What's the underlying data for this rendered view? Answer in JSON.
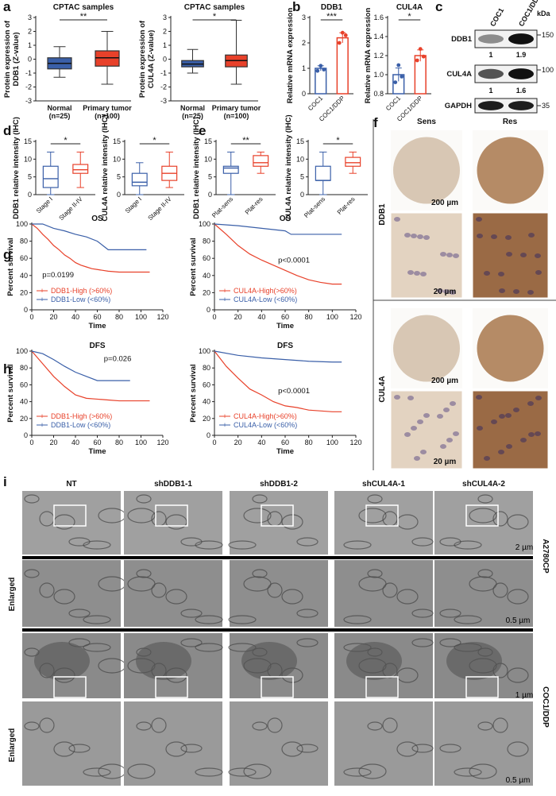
{
  "panel_labels": [
    "a",
    "b",
    "c",
    "d",
    "e",
    "f",
    "g",
    "h",
    "i"
  ],
  "chart_data": [
    {
      "type": "box",
      "title": "CPTAC samples",
      "ylabel": [
        "Protein expression of",
        "DDB1 (Z-value)"
      ],
      "categories": [
        "Normal",
        "Primary tumor"
      ],
      "category_notes": [
        "(n=25)",
        "(n=100)"
      ],
      "values": [
        [
          -1.3,
          -0.7,
          -0.3,
          0.1,
          0.9
        ],
        [
          -1.8,
          -0.5,
          0.1,
          0.6,
          2.0
        ]
      ],
      "colors": [
        "#3a5fa8",
        "#e8412a"
      ],
      "filled": true,
      "annotation": "**",
      "ylim": [
        -3,
        3
      ],
      "yticks": [
        3,
        2,
        1,
        0,
        -1,
        -2,
        -3
      ]
    },
    {
      "type": "box",
      "title": "CPTAC samples",
      "ylabel": [
        "Protein expression of",
        "CUL4A (Z-value)"
      ],
      "categories": [
        "Normal",
        "Primary tumor"
      ],
      "category_notes": [
        "(n=25)",
        "(n=100)"
      ],
      "values": [
        [
          -1.0,
          -0.55,
          -0.35,
          -0.1,
          0.7
        ],
        [
          -1.8,
          -0.55,
          -0.1,
          0.3,
          2.8
        ]
      ],
      "colors": [
        "#3a5fa8",
        "#e8412a"
      ],
      "filled": true,
      "annotation": "*",
      "ylim": [
        -3,
        3
      ],
      "yticks": [
        3,
        2,
        1,
        0,
        -1,
        -2,
        -3
      ]
    },
    {
      "type": "bar",
      "title": "DDB1",
      "ylabel": [
        "Relative mRNA expression"
      ],
      "categories": [
        "COC1",
        "COC1/DDP"
      ],
      "values": [
        1.0,
        2.2
      ],
      "errors": [
        0.1,
        0.2
      ],
      "points": [
        [
          0.9,
          1.1,
          0.95
        ],
        [
          2.0,
          2.4,
          2.3
        ]
      ],
      "colors": [
        "#3a5fa8",
        "#e8412a"
      ],
      "annotation": "***",
      "ylim": [
        0,
        3
      ],
      "yticks": [
        0,
        1,
        2,
        3
      ]
    },
    {
      "type": "bar",
      "title": "CUL4A",
      "ylabel": [
        "Relative mRNA expression"
      ],
      "categories": [
        "COC1",
        "COC1/DDP"
      ],
      "values": [
        1.0,
        1.2
      ],
      "errors": [
        0.07,
        0.06
      ],
      "points": [
        [
          0.92,
          1.1,
          0.98
        ],
        [
          1.15,
          1.27,
          1.19
        ]
      ],
      "colors": [
        "#3a5fa8",
        "#e8412a"
      ],
      "annotation": "*",
      "ylim": [
        0.8,
        1.6
      ],
      "yticks": [
        {
          "value": 0.8,
          "label": "0.8"
        },
        {
          "value": 1,
          "label": "1.0"
        },
        {
          "value": 1.2,
          "label": "1.2"
        },
        {
          "value": 1.4,
          "label": "1.4"
        },
        {
          "value": 1.6,
          "label": "1.6"
        }
      ]
    },
    {
      "type": "box",
      "ylabel": [
        "DDB1 relative intensity (IHC)"
      ],
      "categories": [
        "Stage I",
        "Stage II-IV"
      ],
      "values": [
        [
          0,
          2,
          4.5,
          8,
          12
        ],
        [
          2,
          6,
          7,
          8.5,
          12
        ]
      ],
      "colors": [
        "#3a5fa8",
        "#e8412a"
      ],
      "filled": false,
      "annotation": "*",
      "ylim": [
        0,
        15
      ],
      "yticks": [
        0,
        5,
        10,
        15
      ]
    },
    {
      "type": "box",
      "ylabel": [
        "CUL4A relative intensity (IHC)"
      ],
      "categories": [
        "Stage I",
        "Stage II-IV"
      ],
      "values": [
        [
          0,
          2.5,
          3.5,
          6,
          9
        ],
        [
          2,
          4,
          6,
          8,
          12
        ]
      ],
      "colors": [
        "#3a5fa8",
        "#e8412a"
      ],
      "filled": false,
      "annotation": "*",
      "ylim": [
        0,
        15
      ],
      "yticks": [
        0,
        5,
        10,
        15
      ]
    },
    {
      "type": "box",
      "ylabel": [
        "DDB1 relative intensity (IHC)"
      ],
      "categories": [
        "Plat-sens",
        "Plat-res"
      ],
      "values": [
        [
          0,
          6,
          7.5,
          8,
          12
        ],
        [
          6,
          8,
          9,
          11,
          12
        ]
      ],
      "colors": [
        "#3a5fa8",
        "#e8412a"
      ],
      "filled": false,
      "annotation": "**",
      "ylim": [
        0,
        15
      ],
      "yticks": [
        0,
        5,
        10,
        15
      ]
    },
    {
      "type": "box",
      "ylabel": [
        "CUL4A relative intensity (IHC)"
      ],
      "categories": [
        "Plat-sens",
        "Plat-res"
      ],
      "values": [
        [
          0,
          4,
          4,
          8,
          12
        ],
        [
          6,
          8,
          9,
          10.5,
          12
        ]
      ],
      "colors": [
        "#3a5fa8",
        "#e8412a"
      ],
      "filled": false,
      "annotation": "*",
      "ylim": [
        0,
        15
      ],
      "yticks": [
        0,
        5,
        10,
        15
      ]
    },
    {
      "type": "line",
      "title": "OS",
      "xlabel": "Time",
      "ylabel": [
        "Percent survival"
      ],
      "annotation": "p=0.0199",
      "series": [
        {
          "name": "DDB1-High (>60%)",
          "color": "#e8412a",
          "x": [
            0,
            5,
            10,
            15,
            20,
            25,
            30,
            35,
            40,
            45,
            50,
            55,
            60,
            70,
            80,
            90,
            100,
            108
          ],
          "values": [
            100,
            95,
            88,
            82,
            75,
            70,
            64,
            60,
            55,
            52,
            50,
            48,
            47,
            45,
            44,
            44,
            44,
            44
          ]
        },
        {
          "name": "DDB1-Low (<60%)",
          "color": "#3a5fa8",
          "x": [
            0,
            10,
            20,
            30,
            40,
            50,
            60,
            65,
            70,
            80,
            90,
            100,
            105
          ],
          "values": [
            100,
            100,
            95,
            92,
            88,
            85,
            80,
            75,
            70,
            70,
            70,
            70,
            70
          ]
        }
      ],
      "xlim": [
        0,
        120
      ],
      "xticks": [
        0,
        20,
        40,
        60,
        80,
        100,
        120
      ],
      "ylim": [
        0,
        100
      ],
      "yticks": [
        0,
        20,
        40,
        60,
        80,
        100
      ]
    },
    {
      "type": "line",
      "title": "OS",
      "xlabel": "Time",
      "ylabel": [
        "Percent survival"
      ],
      "annotation": "p<0.0001",
      "series": [
        {
          "name": "CUL4A-High(>60%)",
          "color": "#e8412a",
          "x": [
            0,
            10,
            20,
            30,
            40,
            50,
            60,
            70,
            80,
            90,
            100,
            108
          ],
          "values": [
            100,
            88,
            75,
            65,
            58,
            52,
            46,
            40,
            35,
            32,
            30,
            30
          ]
        },
        {
          "name": "CUL4A-Low (<60%)",
          "color": "#3a5fa8",
          "x": [
            0,
            20,
            40,
            60,
            65,
            80,
            100,
            108
          ],
          "values": [
            100,
            98,
            95,
            92,
            88,
            88,
            88,
            88
          ]
        }
      ],
      "xlim": [
        0,
        120
      ],
      "xticks": [
        0,
        20,
        40,
        60,
        80,
        100,
        120
      ],
      "ylim": [
        0,
        100
      ],
      "yticks": [
        0,
        20,
        40,
        60,
        80,
        100
      ]
    },
    {
      "type": "line",
      "title": "DFS",
      "xlabel": "Time",
      "ylabel": [
        "Percent survival"
      ],
      "annotation": "p=0.026",
      "series": [
        {
          "name": "DDB1-High (>60%)",
          "color": "#e8412a",
          "x": [
            0,
            10,
            20,
            30,
            40,
            50,
            60,
            70,
            80,
            100,
            108
          ],
          "values": [
            100,
            85,
            70,
            58,
            48,
            44,
            43,
            42,
            41,
            41,
            41
          ]
        },
        {
          "name": "DDB1-Low (<60%)",
          "color": "#3a5fa8",
          "x": [
            0,
            10,
            20,
            30,
            40,
            50,
            60,
            70,
            80,
            90
          ],
          "values": [
            100,
            97,
            90,
            82,
            75,
            70,
            65,
            65,
            65,
            65
          ]
        }
      ],
      "xlim": [
        0,
        120
      ],
      "xticks": [
        0,
        20,
        40,
        60,
        80,
        100,
        120
      ],
      "ylim": [
        0,
        100
      ],
      "yticks": [
        0,
        20,
        40,
        60,
        80,
        100
      ]
    },
    {
      "type": "line",
      "title": "DFS",
      "xlabel": "Time",
      "ylabel": [
        "Percent survival"
      ],
      "annotation": "p<0.0001",
      "series": [
        {
          "name": "CUL4A-High(>60%)",
          "color": "#e8412a",
          "x": [
            0,
            10,
            20,
            30,
            40,
            50,
            60,
            70,
            80,
            100,
            108
          ],
          "values": [
            100,
            82,
            68,
            55,
            48,
            40,
            35,
            33,
            30,
            28,
            28
          ]
        },
        {
          "name": "CUL4A-Low (<60%)",
          "color": "#3a5fa8",
          "x": [
            0,
            20,
            40,
            60,
            80,
            100,
            108
          ],
          "values": [
            100,
            95,
            92,
            90,
            88,
            87,
            87
          ]
        }
      ],
      "xlim": [
        0,
        120
      ],
      "xticks": [
        0,
        20,
        40,
        60,
        80,
        100,
        120
      ],
      "ylim": [
        0,
        100
      ],
      "yticks": [
        0,
        20,
        40,
        60,
        80,
        100
      ]
    }
  ],
  "western_blot": {
    "lanes": [
      "COC1",
      "COC1/DDP"
    ],
    "unit": "kDa",
    "proteins": [
      "DDB1",
      "CUL4A",
      "GAPDH"
    ],
    "markers": [
      "150",
      "100",
      "35"
    ],
    "ratios": [
      [
        "1",
        "1.9"
      ],
      [
        "1",
        "1.6"
      ]
    ]
  },
  "ihc": {
    "columns": [
      "Sens",
      "Res"
    ],
    "rows": [
      "DDB1",
      "CUL4A"
    ],
    "scale_bars": [
      "200 µm",
      "20 µm"
    ]
  },
  "em": {
    "columns": [
      "NT",
      "shDDB1-1",
      "shDDB1-2",
      "shCUL4A-1",
      "shCUL4A-2"
    ],
    "cell_lines": [
      "A2780CP",
      "COC1/DDP"
    ],
    "row_label": "Enlarged",
    "scale_bars": [
      "2 µm",
      "0.5 µm",
      "1 µm",
      "0.5 µm"
    ]
  }
}
